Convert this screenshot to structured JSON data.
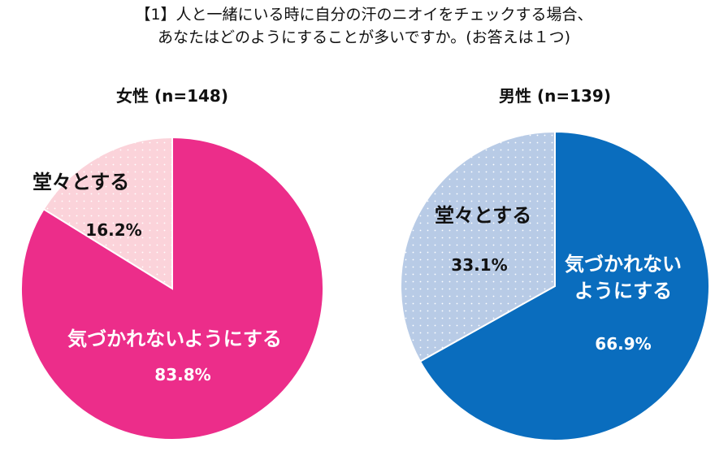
{
  "title_lines": [
    "【1】人と一緒にいる時に自分の汗のニオイをチェックする場合、",
    "あなたはどのようにすることが多いですか。(お答えは１つ)"
  ],
  "chart_data": [
    {
      "type": "pie",
      "title": "女性 (n=148)",
      "slices": [
        {
          "label": "気づかれないようにする",
          "value": 83.8,
          "value_label": "83.8%",
          "color": "#EC2D8A"
        },
        {
          "label": "堂々とする",
          "value": 16.2,
          "value_label": "16.2%",
          "color": "#FBD3DA",
          "pattern": "dotted"
        }
      ]
    },
    {
      "type": "pie",
      "title": "男性 (n=139)",
      "slices": [
        {
          "label": "気づかれないようにする",
          "label_lines": [
            "気づかれない",
            "ようにする"
          ],
          "value": 66.9,
          "value_label": "66.9%",
          "color": "#0A6DBE"
        },
        {
          "label": "堂々とする",
          "value": 33.1,
          "value_label": "33.1%",
          "color": "#B8CBE6",
          "pattern": "dotted"
        }
      ]
    }
  ]
}
